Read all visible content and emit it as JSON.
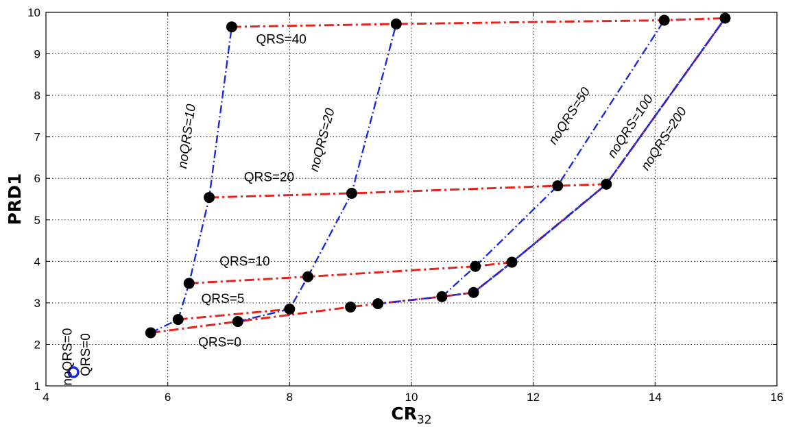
{
  "chart_data": {
    "type": "line",
    "xlabel": "CR",
    "xlabel_sub": "32",
    "ylabel": "PRD1",
    "xlim": [
      4,
      16
    ],
    "ylim": [
      1,
      10
    ],
    "xticks": [
      4,
      6,
      8,
      10,
      12,
      14,
      16
    ],
    "yticks": [
      1,
      2,
      3,
      4,
      5,
      6,
      7,
      8,
      9,
      10
    ],
    "grid": true,
    "series": [
      {
        "name": "QRS=0",
        "group": "QRS",
        "color": "#e8231b",
        "x": [
          5.72,
          7.15,
          9.0,
          9.45,
          10.5,
          11.02,
          11.65,
          13.2,
          15.15
        ],
        "y": [
          2.28,
          2.55,
          2.9,
          2.98,
          3.15,
          3.25,
          3.98,
          5.86,
          9.86
        ]
      },
      {
        "name": "QRS=5",
        "group": "QRS",
        "color": "#e8231b",
        "x": [
          6.17,
          8.0
        ],
        "y": [
          2.6,
          2.85
        ]
      },
      {
        "name": "QRS=10",
        "group": "QRS",
        "color": "#e8231b",
        "x": [
          6.35,
          8.3,
          11.05,
          11.65
        ],
        "y": [
          3.47,
          3.63,
          3.88,
          3.98
        ]
      },
      {
        "name": "QRS=20",
        "group": "QRS",
        "color": "#e8231b",
        "x": [
          6.68,
          9.02,
          12.4,
          13.2
        ],
        "y": [
          5.54,
          5.64,
          5.82,
          5.86
        ]
      },
      {
        "name": "QRS=40",
        "group": "QRS",
        "color": "#e8231b",
        "x": [
          7.05,
          9.75,
          14.15,
          15.15
        ],
        "y": [
          9.65,
          9.72,
          9.81,
          9.86
        ]
      },
      {
        "name": "noQRS=10",
        "group": "noQRS",
        "color": "#1c2bd9",
        "x": [
          5.72,
          6.17,
          6.35,
          6.68,
          7.05
        ],
        "y": [
          2.28,
          2.6,
          3.47,
          5.54,
          9.65
        ]
      },
      {
        "name": "noQRS=20",
        "group": "noQRS",
        "color": "#1c2bd9",
        "x": [
          7.15,
          8.0,
          8.3,
          9.02,
          9.75
        ],
        "y": [
          2.55,
          2.85,
          3.63,
          5.64,
          9.72
        ]
      },
      {
        "name": "noQRS=50",
        "group": "noQRS",
        "color": "#1c2bd9",
        "x": [
          10.5,
          11.05,
          12.4,
          14.15
        ],
        "y": [
          3.15,
          3.88,
          5.82,
          9.81
        ]
      },
      {
        "name": "noQRS=100",
        "group": "noQRS",
        "color": "#1c2bd9",
        "x": [
          11.02,
          11.65,
          13.2,
          15.15
        ],
        "y": [
          3.25,
          3.98,
          5.86,
          9.86
        ]
      },
      {
        "name": "noQRS=200",
        "group": "noQRS",
        "color": "#1c2bd9",
        "x": [
          9.45,
          10.5,
          11.02,
          11.65,
          12.5,
          13.2,
          15.15
        ],
        "y": [
          2.98,
          3.15,
          3.25,
          3.98,
          5.0,
          5.86,
          9.86
        ]
      }
    ],
    "points": {
      "x": [
        5.72,
        6.17,
        6.35,
        6.68,
        7.05,
        7.15,
        8.0,
        8.3,
        9.0,
        9.02,
        9.45,
        9.75,
        10.5,
        11.02,
        11.05,
        11.65,
        12.4,
        13.2,
        14.15,
        15.15
      ],
      "y": [
        2.28,
        2.6,
        3.47,
        5.54,
        9.65,
        2.55,
        2.85,
        3.63,
        2.9,
        5.64,
        2.98,
        9.72,
        3.15,
        3.25,
        3.88,
        3.98,
        5.82,
        5.86,
        9.81,
        9.86
      ],
      "color": "#000000"
    },
    "baseline_point": {
      "x": 4.45,
      "y": 1.33,
      "color": "#1c2bd9"
    },
    "annotations": [
      {
        "text": "QRS=40",
        "x": 7.45,
        "y": 9.25,
        "rotate": 0,
        "italic": false
      },
      {
        "text": "QRS=20",
        "x": 7.25,
        "y": 5.93,
        "rotate": 0,
        "italic": false
      },
      {
        "text": "QRS=10",
        "x": 6.85,
        "y": 3.9,
        "rotate": 0,
        "italic": false
      },
      {
        "text": "QRS=5",
        "x": 6.55,
        "y": 3.0,
        "rotate": 0,
        "italic": false
      },
      {
        "text": "QRS=0",
        "x": 6.5,
        "y": 1.95,
        "rotate": 0,
        "italic": false
      },
      {
        "text": "noQRS=10",
        "x": 6.38,
        "y": 7.0,
        "rotate": -82,
        "italic": true
      },
      {
        "text": "noQRS=20",
        "x": 8.6,
        "y": 6.9,
        "rotate": -75,
        "italic": true
      },
      {
        "text": "noQRS=50",
        "x": 12.65,
        "y": 7.45,
        "rotate": -57,
        "italic": true
      },
      {
        "text": "noQRS=100",
        "x": 13.65,
        "y": 7.2,
        "rotate": -57,
        "italic": true
      },
      {
        "text": "noQRS=200",
        "x": 14.2,
        "y": 6.9,
        "rotate": -57,
        "italic": true
      },
      {
        "text": "noQRS=0",
        "x": 4.42,
        "y": 1.7,
        "rotate": -90,
        "italic": false
      },
      {
        "text": "QRS=0",
        "x": 4.72,
        "y": 1.75,
        "rotate": -90,
        "italic": false
      }
    ]
  }
}
